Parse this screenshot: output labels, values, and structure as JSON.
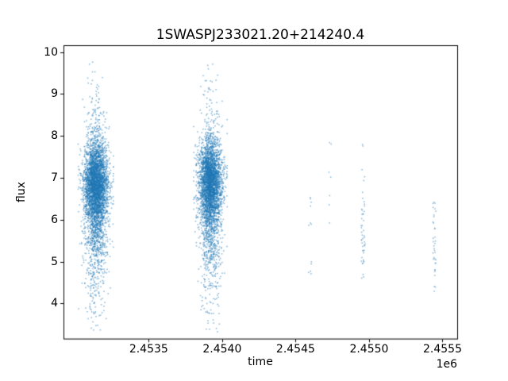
{
  "chart_data": {
    "type": "scatter",
    "title": "1SWASPJ233021.20+214240.4",
    "xlabel": "time",
    "ylabel": "flux",
    "x_offset_label": "1e6",
    "xlim": [
      2452920,
      2455600
    ],
    "ylim": [
      3.15,
      10.15
    ],
    "xticks": [
      {
        "value": 2453500,
        "label": "2.4535"
      },
      {
        "value": 2454000,
        "label": "2.4540"
      },
      {
        "value": 2454500,
        "label": "2.4545"
      },
      {
        "value": 2455000,
        "label": "2.4550"
      },
      {
        "value": 2455500,
        "label": "2.4555"
      }
    ],
    "yticks": [
      {
        "value": 4,
        "label": "4"
      },
      {
        "value": 5,
        "label": "5"
      },
      {
        "value": 6,
        "label": "6"
      },
      {
        "value": 7,
        "label": "7"
      },
      {
        "value": 8,
        "label": "8"
      },
      {
        "value": 9,
        "label": "9"
      },
      {
        "value": 10,
        "label": "10"
      }
    ],
    "marker_color": "#1f77b4",
    "marker_alpha": 0.55,
    "marker_size": 1.5,
    "seed": 123457,
    "series_description": "SuperWASP light curve: two dense observing seasons of ~flux 3.3-9.8 centered near flux 6.7, plus four sparse vertical groups of points at later times",
    "dense_clusters": [
      {
        "name": "season-1",
        "n": 4200,
        "x_mean": 2453140,
        "x_sd": 40,
        "flux_components": [
          {
            "weight": 0.55,
            "mean": 6.9,
            "sd": 0.45
          },
          {
            "weight": 0.3,
            "mean": 6.4,
            "sd": 0.8
          },
          {
            "weight": 0.15,
            "mean": 6.2,
            "sd": 1.5
          }
        ],
        "flux_range": [
          3.35,
          9.8
        ]
      },
      {
        "name": "season-2",
        "n": 3800,
        "x_mean": 2453920,
        "x_sd": 38,
        "flux_components": [
          {
            "weight": 0.55,
            "mean": 6.95,
            "sd": 0.45
          },
          {
            "weight": 0.3,
            "mean": 6.45,
            "sd": 0.8
          },
          {
            "weight": 0.15,
            "mean": 6.25,
            "sd": 1.5
          }
        ],
        "flux_range": [
          3.3,
          9.75
        ]
      }
    ],
    "sparse_clusters": [
      {
        "name": "group-3",
        "x_center": 2454600,
        "x_jitter": 12,
        "flux_bands": [
          [
            6.2,
            6.6,
            4
          ],
          [
            5.8,
            6.05,
            3
          ],
          [
            4.7,
            5.0,
            5
          ]
        ]
      },
      {
        "name": "group-4",
        "x_center": 2454735,
        "x_jitter": 10,
        "flux_bands": [
          [
            7.75,
            7.85,
            2
          ],
          [
            7.0,
            7.3,
            2
          ],
          [
            6.3,
            6.6,
            2
          ],
          [
            5.9,
            6.1,
            1
          ]
        ]
      },
      {
        "name": "group-5",
        "x_center": 2454960,
        "x_jitter": 14,
        "flux_bands": [
          [
            7.75,
            7.85,
            2
          ],
          [
            6.9,
            7.2,
            3
          ],
          [
            6.2,
            6.7,
            7
          ],
          [
            5.7,
            6.2,
            11
          ],
          [
            5.1,
            5.7,
            16
          ],
          [
            4.8,
            5.1,
            7
          ],
          [
            4.55,
            4.8,
            3
          ]
        ]
      },
      {
        "name": "group-6",
        "x_center": 2455445,
        "x_jitter": 10,
        "flux_bands": [
          [
            6.35,
            6.55,
            3
          ],
          [
            5.9,
            6.3,
            7
          ],
          [
            5.4,
            5.9,
            7
          ],
          [
            4.95,
            5.4,
            11
          ],
          [
            4.6,
            4.95,
            4
          ],
          [
            4.2,
            4.45,
            3
          ]
        ]
      }
    ],
    "axes": {
      "frame_color": "#000000",
      "grid": false,
      "legend": "none"
    }
  }
}
